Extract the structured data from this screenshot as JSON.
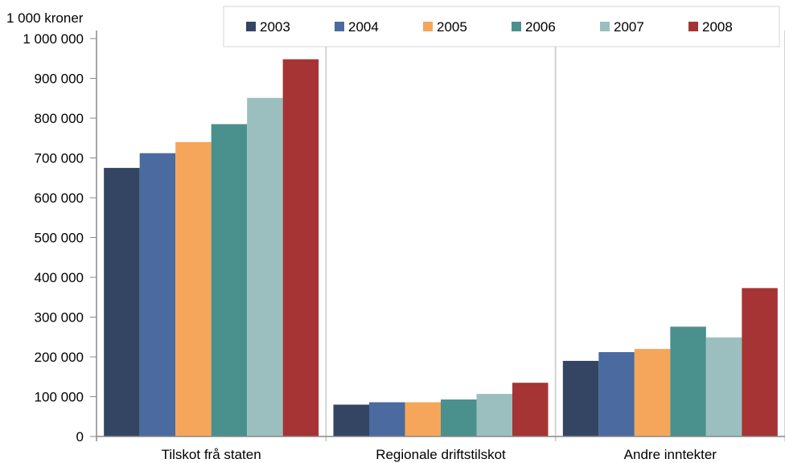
{
  "chart_data": {
    "type": "bar",
    "unit_label": "1 000 kroner",
    "categories": [
      "Tilskot frå staten",
      "Regionale driftstilskot",
      "Andre inntekter"
    ],
    "series": [
      {
        "name": "2003",
        "color": "#344563",
        "values": [
          675000,
          80000,
          190000
        ]
      },
      {
        "name": "2004",
        "color": "#4a6aa0",
        "values": [
          712000,
          86000,
          212000
        ]
      },
      {
        "name": "2005",
        "color": "#f5a65b",
        "values": [
          740000,
          86000,
          220000
        ]
      },
      {
        "name": "2006",
        "color": "#4a908d",
        "values": [
          785000,
          93000,
          276000
        ]
      },
      {
        "name": "2007",
        "color": "#9bbfbf",
        "values": [
          851000,
          107000,
          249000
        ]
      },
      {
        "name": "2008",
        "color": "#a63434",
        "values": [
          948000,
          135000,
          373000
        ]
      }
    ],
    "y_ticks": [
      "0",
      "100 000",
      "200 000",
      "300 000",
      "400 000",
      "500 000",
      "600 000",
      "700 000",
      "800 000",
      "900 000",
      "1 000 000"
    ],
    "ylim": [
      0,
      1000000
    ],
    "grid": "vertical category separators",
    "legend_position": "top"
  }
}
